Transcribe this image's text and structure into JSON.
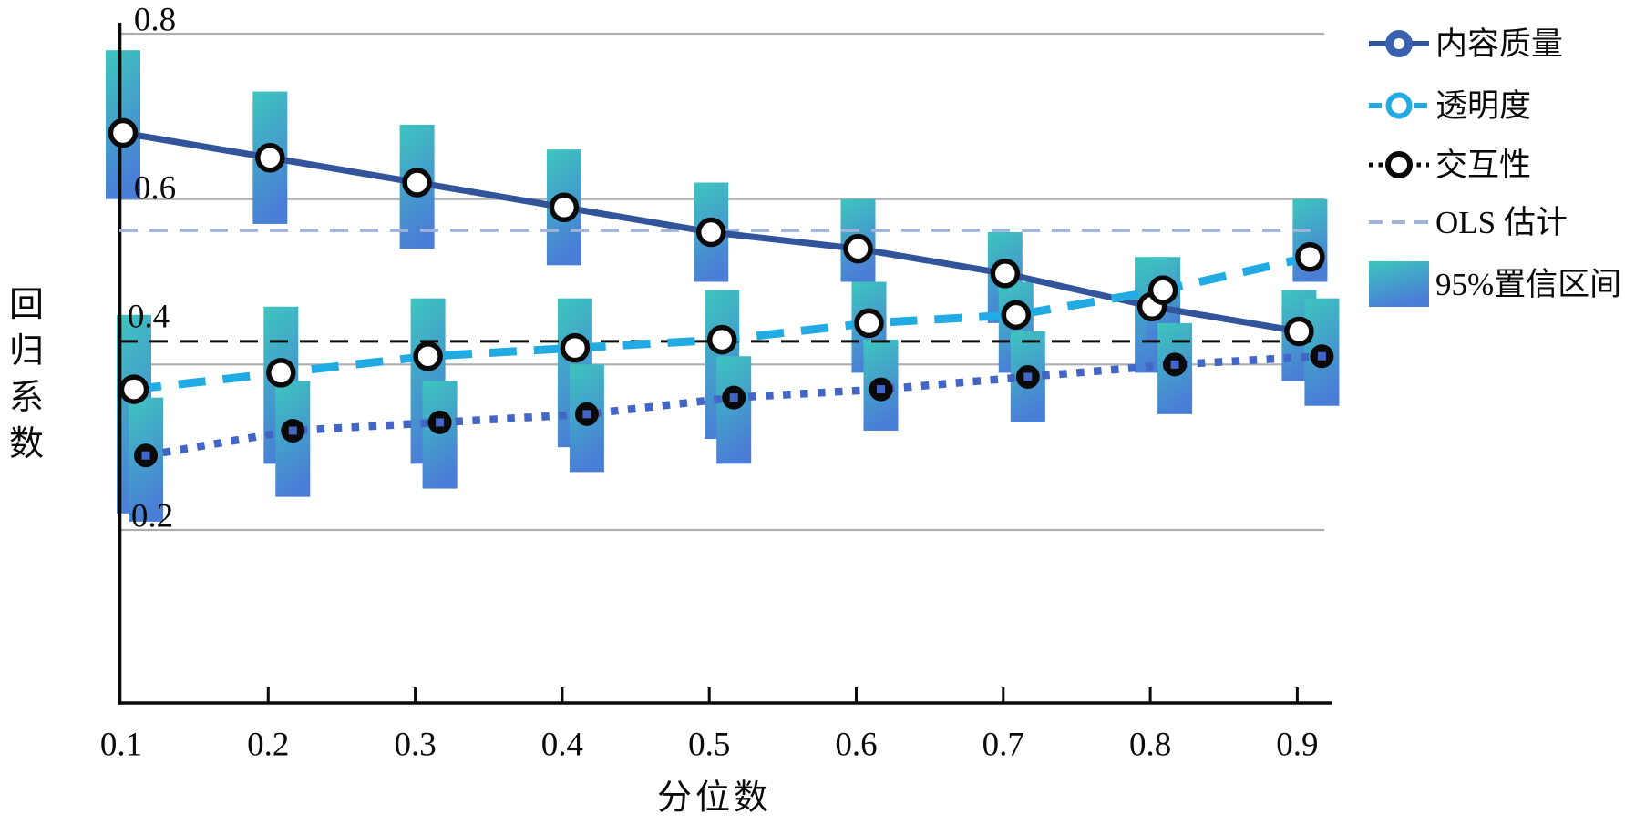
{
  "chart_data": {
    "type": "line",
    "title": "",
    "xlabel": "分位数",
    "ylabel": "回归系数",
    "ylabel_chars": [
      "回",
      "归",
      "系",
      "数"
    ],
    "x": [
      0.1,
      0.2,
      0.3,
      0.4,
      0.5,
      0.6,
      0.7,
      0.8,
      0.9
    ],
    "x_tick_labels": [
      "0.1",
      "0.2",
      "0.3",
      "0.4",
      "0.5",
      "0.6",
      "0.7",
      "0.8",
      "0.9"
    ],
    "y_tick_labels": [
      "0.8",
      "0.6",
      "0.4",
      "0.2"
    ],
    "y_grid_values": [
      0.8,
      0.6,
      0.4,
      0.2
    ],
    "ylim": [
      0,
      0.84
    ],
    "grid": true,
    "legend_position": "right",
    "series": [
      {
        "name": "内容质量",
        "sname": "content-quality",
        "style": "solid",
        "color": "#31549B",
        "marker": "open-circle",
        "values": [
          0.68,
          0.65,
          0.62,
          0.59,
          0.56,
          0.54,
          0.51,
          0.47,
          0.44
        ],
        "ci_lower": [
          0.6,
          0.57,
          0.54,
          0.52,
          0.5,
          0.5,
          0.45,
          0.39,
          0.38
        ],
        "ci_upper": [
          0.78,
          0.73,
          0.69,
          0.66,
          0.62,
          0.6,
          0.56,
          0.53,
          0.49
        ]
      },
      {
        "name": "透明度",
        "sname": "transparency",
        "style": "dashed",
        "color": "#22ABE3",
        "marker": "open-circle",
        "values": [
          0.37,
          0.39,
          0.41,
          0.42,
          0.43,
          0.45,
          0.46,
          0.49,
          0.53
        ],
        "ci_lower": [
          0.22,
          0.28,
          0.28,
          0.3,
          0.31,
          0.39,
          0.39,
          0.43,
          0.5
        ],
        "ci_upper": [
          0.46,
          0.47,
          0.48,
          0.48,
          0.49,
          0.5,
          0.5,
          0.53,
          0.6
        ]
      },
      {
        "name": "交互性",
        "sname": "interactivity",
        "style": "dotted",
        "color": "#4365C6",
        "marker": "filled-black-circle",
        "values": [
          0.29,
          0.32,
          0.33,
          0.34,
          0.36,
          0.37,
          0.385,
          0.4,
          0.41
        ],
        "ci_lower": [
          0.21,
          0.24,
          0.25,
          0.27,
          0.28,
          0.32,
          0.33,
          0.34,
          0.35
        ],
        "ci_upper": [
          0.36,
          0.38,
          0.38,
          0.4,
          0.41,
          0.43,
          0.44,
          0.45,
          0.48
        ]
      }
    ],
    "reference_lines": [
      {
        "name": "OLS 估计",
        "sname": "ols-estimate",
        "value": 0.562,
        "color": "#9FB3DB",
        "style": "dashed"
      },
      {
        "name": "OLS 估计",
        "sname": "ols-estimate-black",
        "value": 0.428,
        "color": "#0a0a0a",
        "style": "dashed"
      }
    ],
    "ci_label": "95%置信区间",
    "legend_labels": [
      "内容质量",
      "透明度",
      "交互性",
      "OLS 估计",
      "95%置信区间"
    ],
    "colors": {
      "grid": "#AEAEAE",
      "axis": "#0a0a0a",
      "bar_gradient_top": "#3DC6BE",
      "bar_gradient_bottom": "#4A7ED6",
      "marker_ring": "#0a0a0a",
      "marker_fill": "#ffffff",
      "legend_donut_fill": "#3760AE"
    }
  }
}
